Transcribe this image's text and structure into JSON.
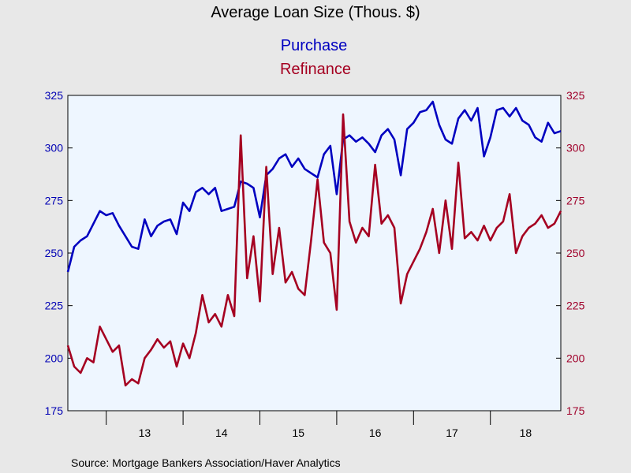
{
  "chart_data": {
    "type": "line",
    "title": "Average Loan Size (Thous. $)",
    "source": "Source:  Mortgage Bankers Association/Haver Analytics",
    "x_range": [
      "2012-07",
      "2018-12"
    ],
    "x_tick_labels": [
      "13",
      "14",
      "15",
      "16",
      "17",
      "18"
    ],
    "y_left": {
      "range": [
        175,
        325
      ],
      "ticks": [
        175,
        200,
        225,
        250,
        275,
        300,
        325
      ],
      "color": "#0000b4"
    },
    "y_right": {
      "range": [
        175,
        325
      ],
      "ticks": [
        175,
        200,
        225,
        250,
        275,
        300,
        325
      ],
      "color": "#a0002a"
    },
    "grid": false,
    "legend_position": "top-center",
    "series": [
      {
        "name": "Purchase",
        "axis": "left",
        "color": "#0000c0",
        "points": [
          [
            "2012-07",
            241
          ],
          [
            "2012-08",
            253
          ],
          [
            "2012-09",
            256
          ],
          [
            "2012-10",
            258
          ],
          [
            "2012-11",
            264
          ],
          [
            "2012-12",
            270
          ],
          [
            "2013-01",
            268
          ],
          [
            "2013-02",
            269
          ],
          [
            "2013-03",
            263
          ],
          [
            "2013-04",
            258
          ],
          [
            "2013-05",
            253
          ],
          [
            "2013-06",
            252
          ],
          [
            "2013-07",
            266
          ],
          [
            "2013-08",
            258
          ],
          [
            "2013-09",
            263
          ],
          [
            "2013-10",
            265
          ],
          [
            "2013-11",
            266
          ],
          [
            "2013-12",
            259
          ],
          [
            "2014-01",
            274
          ],
          [
            "2014-02",
            270
          ],
          [
            "2014-03",
            279
          ],
          [
            "2014-04",
            281
          ],
          [
            "2014-05",
            278
          ],
          [
            "2014-06",
            281
          ],
          [
            "2014-07",
            270
          ],
          [
            "2014-08",
            271
          ],
          [
            "2014-09",
            272
          ],
          [
            "2014-10",
            284
          ],
          [
            "2014-11",
            283
          ],
          [
            "2014-12",
            281
          ],
          [
            "2015-01",
            267
          ],
          [
            "2015-02",
            287
          ],
          [
            "2015-03",
            290
          ],
          [
            "2015-04",
            295
          ],
          [
            "2015-05",
            297
          ],
          [
            "2015-06",
            291
          ],
          [
            "2015-07",
            295
          ],
          [
            "2015-08",
            290
          ],
          [
            "2015-09",
            288
          ],
          [
            "2015-10",
            286
          ],
          [
            "2015-11",
            297
          ],
          [
            "2015-12",
            301
          ],
          [
            "2016-01",
            278
          ],
          [
            "2016-02",
            304
          ],
          [
            "2016-03",
            306
          ],
          [
            "2016-04",
            303
          ],
          [
            "2016-05",
            305
          ],
          [
            "2016-06",
            302
          ],
          [
            "2016-07",
            298
          ],
          [
            "2016-08",
            306
          ],
          [
            "2016-09",
            309
          ],
          [
            "2016-10",
            304
          ],
          [
            "2016-11",
            287
          ],
          [
            "2016-12",
            309
          ],
          [
            "2017-01",
            312
          ],
          [
            "2017-02",
            317
          ],
          [
            "2017-03",
            318
          ],
          [
            "2017-04",
            322
          ],
          [
            "2017-05",
            311
          ],
          [
            "2017-06",
            304
          ],
          [
            "2017-07",
            302
          ],
          [
            "2017-08",
            314
          ],
          [
            "2017-09",
            318
          ],
          [
            "2017-10",
            313
          ],
          [
            "2017-11",
            319
          ],
          [
            "2017-12",
            296
          ],
          [
            "2018-01",
            305
          ],
          [
            "2018-02",
            318
          ],
          [
            "2018-03",
            319
          ],
          [
            "2018-04",
            315
          ],
          [
            "2018-05",
            319
          ],
          [
            "2018-06",
            313
          ],
          [
            "2018-07",
            311
          ],
          [
            "2018-08",
            305
          ],
          [
            "2018-09",
            303
          ],
          [
            "2018-10",
            312
          ],
          [
            "2018-11",
            307
          ],
          [
            "2018-12",
            308
          ]
        ]
      },
      {
        "name": "Refinance",
        "axis": "right",
        "color": "#a50021",
        "points": [
          [
            "2012-07",
            206
          ],
          [
            "2012-08",
            196
          ],
          [
            "2012-09",
            193
          ],
          [
            "2012-10",
            200
          ],
          [
            "2012-11",
            198
          ],
          [
            "2012-12",
            215
          ],
          [
            "2013-01",
            209
          ],
          [
            "2013-02",
            203
          ],
          [
            "2013-03",
            206
          ],
          [
            "2013-04",
            187
          ],
          [
            "2013-05",
            190
          ],
          [
            "2013-06",
            188
          ],
          [
            "2013-07",
            200
          ],
          [
            "2013-08",
            204
          ],
          [
            "2013-09",
            209
          ],
          [
            "2013-10",
            205
          ],
          [
            "2013-11",
            208
          ],
          [
            "2013-12",
            196
          ],
          [
            "2014-01",
            207
          ],
          [
            "2014-02",
            200
          ],
          [
            "2014-03",
            212
          ],
          [
            "2014-04",
            230
          ],
          [
            "2014-05",
            217
          ],
          [
            "2014-06",
            221
          ],
          [
            "2014-07",
            215
          ],
          [
            "2014-08",
            230
          ],
          [
            "2014-09",
            220
          ],
          [
            "2014-10",
            306
          ],
          [
            "2014-11",
            238
          ],
          [
            "2014-12",
            258
          ],
          [
            "2015-01",
            227
          ],
          [
            "2015-02",
            291
          ],
          [
            "2015-03",
            240
          ],
          [
            "2015-04",
            262
          ],
          [
            "2015-05",
            236
          ],
          [
            "2015-06",
            241
          ],
          [
            "2015-07",
            233
          ],
          [
            "2015-08",
            230
          ],
          [
            "2015-09",
            256
          ],
          [
            "2015-10",
            285
          ],
          [
            "2015-11",
            255
          ],
          [
            "2015-12",
            250
          ],
          [
            "2016-01",
            223
          ],
          [
            "2016-02",
            316
          ],
          [
            "2016-03",
            265
          ],
          [
            "2016-04",
            255
          ],
          [
            "2016-05",
            262
          ],
          [
            "2016-06",
            258
          ],
          [
            "2016-07",
            292
          ],
          [
            "2016-08",
            264
          ],
          [
            "2016-09",
            268
          ],
          [
            "2016-10",
            262
          ],
          [
            "2016-11",
            226
          ],
          [
            "2016-12",
            240
          ],
          [
            "2017-01",
            246
          ],
          [
            "2017-02",
            252
          ],
          [
            "2017-03",
            260
          ],
          [
            "2017-04",
            271
          ],
          [
            "2017-05",
            250
          ],
          [
            "2017-06",
            275
          ],
          [
            "2017-07",
            252
          ],
          [
            "2017-08",
            293
          ],
          [
            "2017-09",
            257
          ],
          [
            "2017-10",
            260
          ],
          [
            "2017-11",
            256
          ],
          [
            "2017-12",
            263
          ],
          [
            "2018-01",
            256
          ],
          [
            "2018-02",
            262
          ],
          [
            "2018-03",
            265
          ],
          [
            "2018-04",
            278
          ],
          [
            "2018-05",
            250
          ],
          [
            "2018-06",
            258
          ],
          [
            "2018-07",
            262
          ],
          [
            "2018-08",
            264
          ],
          [
            "2018-09",
            268
          ],
          [
            "2018-10",
            262
          ],
          [
            "2018-11",
            264
          ],
          [
            "2018-12",
            270
          ]
        ]
      }
    ]
  }
}
